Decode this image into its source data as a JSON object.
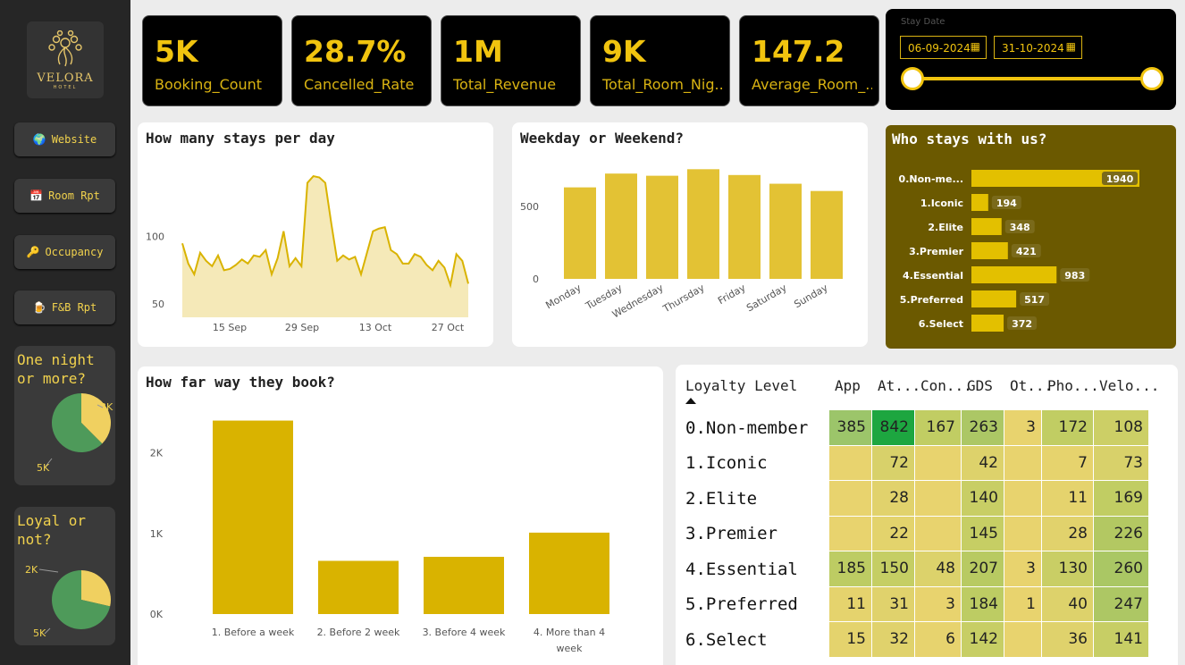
{
  "sidebar": {
    "logo": {
      "brand": "VELORA",
      "sub": "HOTEL"
    },
    "nav": [
      {
        "label": "Website",
        "icon": "globe-icon",
        "glyph": "🌍"
      },
      {
        "label": "Room Rpt",
        "icon": "calendar-icon",
        "glyph": "📅"
      },
      {
        "label": "Occupancy",
        "icon": "key-icon",
        "glyph": "🔑"
      },
      {
        "label": "F&B Rpt",
        "icon": "beer-icon",
        "glyph": "🍺"
      }
    ],
    "one_night": {
      "title_line1": "One night",
      "title_line2": "or more?",
      "chart_data": {
        "type": "pie",
        "labels": [
          "3K",
          "5K"
        ],
        "values": [
          3,
          5
        ],
        "colors": [
          "#f0d060",
          "#4e9a5a"
        ]
      }
    },
    "loyal": {
      "title_line1": "Loyal or",
      "title_line2": "not?",
      "chart_data": {
        "type": "pie",
        "labels": [
          "2K",
          "5K"
        ],
        "values": [
          2,
          5
        ],
        "colors": [
          "#f0d060",
          "#4e9a5a"
        ]
      }
    }
  },
  "kpis": [
    {
      "value": "5K",
      "label": "Booking_Count"
    },
    {
      "value": "28.7%",
      "label": "Cancelled_Rate"
    },
    {
      "value": "1M",
      "label": "Total_Revenue"
    },
    {
      "value": "9K",
      "label": "Total_Room_Nig..."
    },
    {
      "value": "147.2",
      "label": "Average_Room_..."
    }
  ],
  "slicer": {
    "title": "Stay Date",
    "start": "06-09-2024",
    "end": "31-10-2024",
    "range": [
      0,
      1
    ]
  },
  "stays_per_day": {
    "title": "How many stays per day",
    "chart_data": {
      "type": "area",
      "yticks": [
        "100",
        "50"
      ],
      "ytick_values": [
        100,
        50
      ],
      "xticks": [
        "15 Sep",
        "29 Sep",
        "13 Oct",
        "27 Oct"
      ],
      "ylim": [
        40,
        155
      ],
      "values": [
        95,
        80,
        72,
        88,
        82,
        78,
        86,
        75,
        76,
        79,
        83,
        80,
        86,
        85,
        90,
        72,
        84,
        104,
        78,
        84,
        78,
        140,
        145,
        144,
        140,
        110,
        82,
        86,
        83,
        85,
        72,
        88,
        104,
        106,
        107,
        90,
        87,
        80,
        80,
        87,
        85,
        79,
        75,
        82,
        77,
        64,
        87,
        82,
        65
      ],
      "fill": "#f5e9b8",
      "line": "#d9b300"
    }
  },
  "weekday": {
    "title": "Weekday or Weekend?",
    "chart_data": {
      "type": "bar",
      "categories": [
        "Monday",
        "Tuesday",
        "Wednesday",
        "Thursday",
        "Friday",
        "Saturday",
        "Sunday"
      ],
      "values": [
        630,
        725,
        710,
        755,
        715,
        655,
        605
      ],
      "yticks": [
        "500",
        "0"
      ],
      "ytick_values": [
        500,
        0
      ],
      "ylim": [
        0,
        800
      ],
      "color": "#e3c234"
    }
  },
  "who_stays": {
    "title": "Who stays with us?",
    "chart_data": {
      "type": "bar",
      "categories": [
        "0.Non-me...",
        "1.Iconic",
        "2.Elite",
        "3.Premier",
        "4.Essential",
        "5.Preferred",
        "6.Select"
      ],
      "values": [
        1940,
        194,
        348,
        421,
        983,
        517,
        372
      ],
      "xlim": [
        0,
        1940
      ],
      "color": "#e3c000"
    }
  },
  "book_ahead": {
    "title": "How far way they book?",
    "chart_data": {
      "type": "bar",
      "categories": [
        "1. Before a week",
        "2. Before 2 week",
        "3. Before 4 week",
        "4. More than 4 week"
      ],
      "values": [
        2400,
        660,
        710,
        1010
      ],
      "yticks": [
        "2K",
        "1K",
        "0K"
      ],
      "ytick_values": [
        2000,
        1000,
        0
      ],
      "ylim": [
        0,
        2650
      ],
      "color": "#d9b300"
    }
  },
  "matrix": {
    "row_header": "Loyalty Level",
    "sort_icon": "sort-up-icon",
    "columns": [
      "App",
      "At...",
      "Con...",
      "GDS",
      "Ot...",
      "Pho...",
      "Velo..."
    ],
    "rows": [
      {
        "label": "0.Non-member",
        "cells": [
          "385",
          "842",
          "167",
          "263",
          "3",
          "172",
          "108"
        ],
        "colors": [
          "#9cc56a",
          "#1da640",
          "#c1cd63",
          "#acc765",
          "#e8d36e",
          "#c1cd63",
          "#cccf66"
        ]
      },
      {
        "label": "1.Iconic",
        "cells": [
          "",
          "72",
          "",
          "42",
          "",
          "7",
          "73"
        ],
        "colors": [
          "#e8d36e",
          "#d8d16a",
          "#e8d36e",
          "#ddd26b",
          "#e8d36e",
          "#e6d36d",
          "#d8d16a"
        ]
      },
      {
        "label": "2.Elite",
        "cells": [
          "",
          "28",
          "",
          "140",
          "",
          "11",
          "169"
        ],
        "colors": [
          "#e8d36e",
          "#e1d26c",
          "#e8d36e",
          "#c8ce65",
          "#e8d36e",
          "#e5d36d",
          "#c1cd63"
        ]
      },
      {
        "label": "3.Premier",
        "cells": [
          "",
          "22",
          "",
          "145",
          "",
          "28",
          "226"
        ],
        "colors": [
          "#e8d36e",
          "#e3d36c",
          "#e8d36e",
          "#c6ce64",
          "#e8d36e",
          "#e1d26c",
          "#b3c862"
        ]
      },
      {
        "label": "4.Essential",
        "cells": [
          "185",
          "150",
          "48",
          "207",
          "3",
          "130",
          "260"
        ],
        "colors": [
          "#bdcc63",
          "#c5ce64",
          "#dcd26b",
          "#b8ca62",
          "#e8d36e",
          "#c9ce65",
          "#aac764"
        ]
      },
      {
        "label": "5.Preferred",
        "cells": [
          "11",
          "31",
          "3",
          "184",
          "1",
          "40",
          "247"
        ],
        "colors": [
          "#e5d36d",
          "#e0d26c",
          "#e8d36e",
          "#bdcc63",
          "#e8d36e",
          "#ddd26b",
          "#adc764"
        ]
      },
      {
        "label": "6.Select",
        "cells": [
          "15",
          "32",
          "6",
          "142",
          "",
          "36",
          "141"
        ],
        "colors": [
          "#e4d36d",
          "#e0d26c",
          "#e7d36e",
          "#c7ce65",
          "#e8d36e",
          "#dfd26c",
          "#c7ce65"
        ]
      }
    ]
  }
}
